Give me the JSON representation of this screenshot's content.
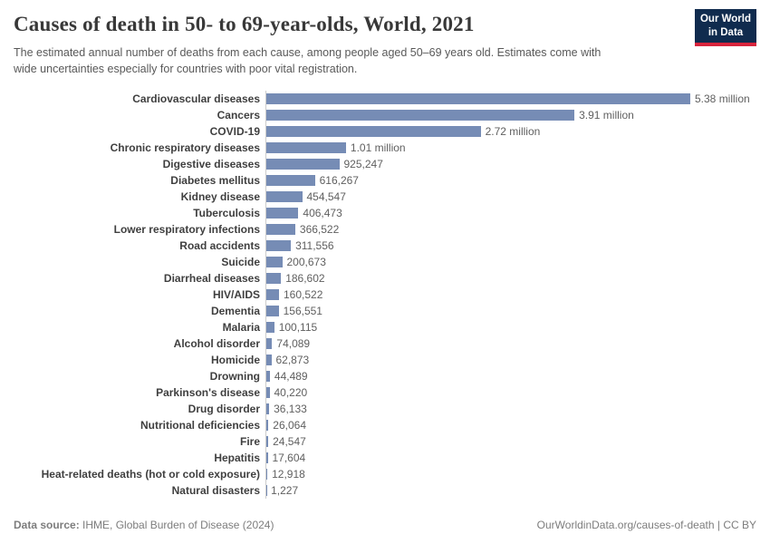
{
  "header": {
    "title": "Causes of death in 50- to 69-year-olds, World, 2021",
    "subtitle": "The estimated annual number of deaths from each cause, among people aged 50–69 years old. Estimates come with wide uncertainties especially for countries with poor vital registration.",
    "logo": {
      "line1": "Our World",
      "line2": "in Data"
    }
  },
  "chart_data": {
    "type": "bar",
    "orientation": "horizontal",
    "title": "Causes of death in 50- to 69-year-olds, World, 2021",
    "categories": [
      "Cardiovascular diseases",
      "Cancers",
      "COVID-19",
      "Chronic respiratory diseases",
      "Digestive diseases",
      "Diabetes mellitus",
      "Kidney disease",
      "Tuberculosis",
      "Lower respiratory infections",
      "Road accidents",
      "Suicide",
      "Diarrheal diseases",
      "HIV/AIDS",
      "Dementia",
      "Malaria",
      "Alcohol disorder",
      "Homicide",
      "Drowning",
      "Parkinson's disease",
      "Drug disorder",
      "Nutritional deficiencies",
      "Fire",
      "Hepatitis",
      "Heat-related deaths (hot or cold exposure)",
      "Natural disasters"
    ],
    "values": [
      5380000,
      3910000,
      2720000,
      1010000,
      925247,
      616267,
      454547,
      406473,
      366522,
      311556,
      200673,
      186602,
      160522,
      156551,
      100115,
      74089,
      62873,
      44489,
      40220,
      36133,
      26064,
      24547,
      17604,
      12918,
      1227
    ],
    "value_labels": [
      "5.38 million",
      "3.91 million",
      "2.72 million",
      "1.01 million",
      "925,247",
      "616,267",
      "454,547",
      "406,473",
      "366,522",
      "311,556",
      "200,673",
      "186,602",
      "160,522",
      "156,551",
      "100,115",
      "74,089",
      "62,873",
      "44,489",
      "40,220",
      "36,133",
      "26,064",
      "24,547",
      "17,604",
      "12,918",
      "1,227"
    ],
    "xlim": [
      0,
      5380000
    ],
    "bar_color": "#768cb5",
    "grid": "off",
    "legend": "none"
  },
  "footer": {
    "datasource_label": "Data source:",
    "datasource_text": " IHME, Global Burden of Disease (2024)",
    "credit": "OurWorldinData.org/causes-of-death | CC BY"
  },
  "colors": {
    "bar": "#768cb5",
    "logo_navy": "#102b4e",
    "logo_red": "#d8243c",
    "axis_line": "#cccccc",
    "title_text": "#383838",
    "subtitle_text": "#595959",
    "label_text": "#3f3f3f",
    "value_text": "#5f5f5f",
    "footer_text": "#7d7d7d"
  }
}
